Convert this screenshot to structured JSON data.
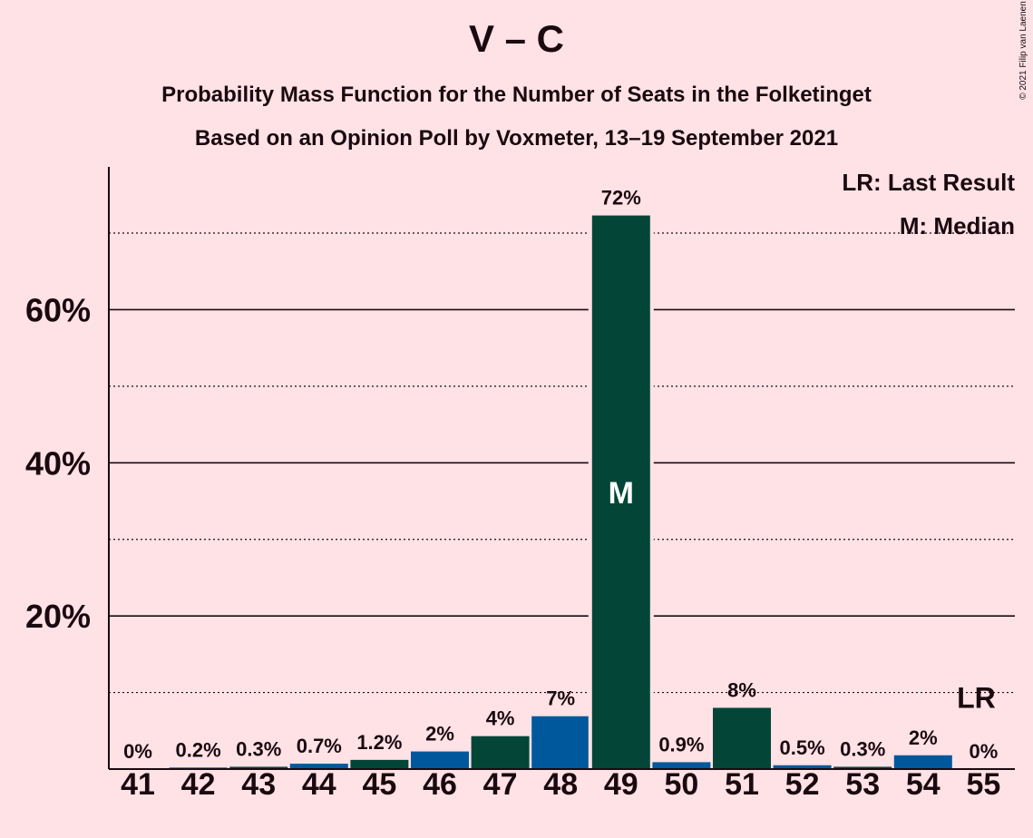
{
  "title": "V – C",
  "subtitle1": "Probability Mass Function for the Number of Seats in the Folketinget",
  "subtitle2": "Based on an Opinion Poll by Voxmeter, 13–19 September 2021",
  "copyright": "© 2021 Filip van Laenen",
  "legend": {
    "last_result": "LR: Last Result",
    "median": "M: Median"
  },
  "colors": {
    "background": "#FFE2E6",
    "green": "#034638",
    "blue": "#00589C",
    "text": "#1a0a10"
  },
  "chart_data": {
    "type": "bar",
    "categories": [
      "41",
      "42",
      "43",
      "44",
      "45",
      "46",
      "47",
      "48",
      "49",
      "50",
      "51",
      "52",
      "53",
      "54",
      "55"
    ],
    "values": [
      0,
      0.2,
      0.3,
      0.7,
      1.2,
      2.3,
      4.3,
      6.9,
      72.3,
      0.9,
      8.0,
      0.5,
      0.3,
      1.8,
      0
    ],
    "labels": [
      "0%",
      "0.2%",
      "0.3%",
      "0.7%",
      "1.2%",
      "2%",
      "4%",
      "7%",
      "72%",
      "0.9%",
      "8%",
      "0.5%",
      "0.3%",
      "2%",
      "0%"
    ],
    "bar_colors": [
      "blue",
      "blue",
      "green",
      "blue",
      "green",
      "blue",
      "green",
      "blue",
      "green",
      "blue",
      "green",
      "blue",
      "green",
      "blue",
      "green"
    ],
    "ylim": [
      0,
      78
    ],
    "major_ticks": [
      20,
      40,
      60
    ],
    "major_tick_labels": [
      "20%",
      "40%",
      "60%"
    ],
    "minor_gridlines": [
      10,
      30,
      50,
      70
    ],
    "median_index": 8,
    "median_label": "M",
    "last_result_index": 14,
    "last_result_label": "LR"
  }
}
